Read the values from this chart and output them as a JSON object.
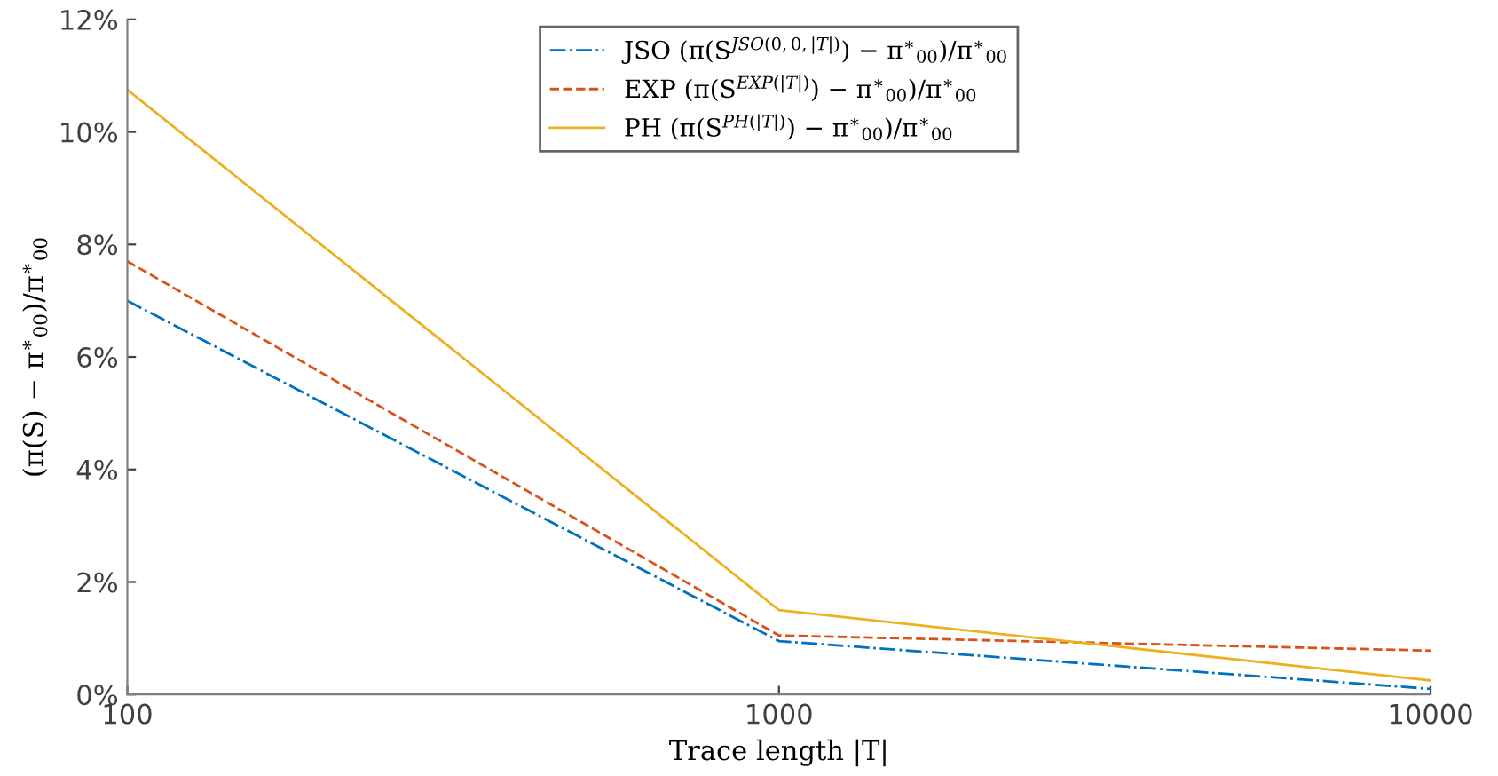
{
  "chart_data": {
    "type": "line",
    "xlabel": "Trace length |T|",
    "ylabel": "(π(S) − π$^{∗}$$_{00}$)/π$^{∗}$$_{00}$",
    "log": "x",
    "x": [
      100,
      1000,
      10000
    ],
    "series": [
      {
        "name": "JSO (π(S$^{JSO(0,0,|T|)}$) − π$^{∗}$$_{00}$)/π$^{∗}$$_{00}$",
        "color": "#0072bd",
        "line_style": "dashdot",
        "values": [
          7.0,
          0.95,
          0.1
        ]
      },
      {
        "name": "EXP (π(S$^{EXP(|T|)}$) − π$^{∗}$$_{00}$)/π$^{∗}$$_{00}$",
        "color": "#d95319",
        "line_style": "dashed",
        "values": [
          7.7,
          1.05,
          0.78
        ]
      },
      {
        "name": "PH (π(S$^{PH(|T|)}$) − π$^{∗}$$_{00}$)/π$^{∗}$$_{00}$",
        "color": "#edb120",
        "line_style": "solid",
        "values": [
          10.75,
          1.5,
          0.25
        ]
      }
    ],
    "xlim": [
      100,
      10000
    ],
    "xticks": [
      100,
      1000,
      10000
    ],
    "ylim": [
      0,
      12
    ],
    "yticks": [
      {
        "value": 0,
        "label": "0%"
      },
      {
        "value": 2,
        "label": "2%"
      },
      {
        "value": 4,
        "label": "4%"
      },
      {
        "value": 6,
        "label": "6%"
      },
      {
        "value": 8,
        "label": "8%"
      },
      {
        "value": 10,
        "label": "10%"
      },
      {
        "value": 12,
        "label": "12%"
      }
    ],
    "grid": false,
    "legend": "top"
  }
}
